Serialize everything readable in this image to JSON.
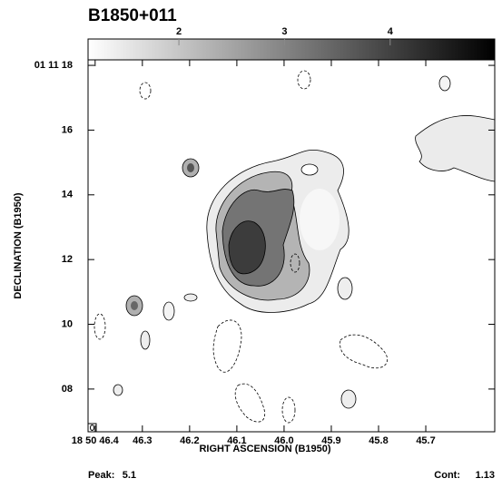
{
  "chart_data": {
    "type": "contour",
    "title": "B1850+011",
    "xlabel": "RIGHT ASCENSION (B1950)",
    "ylabel": "DECLINATION (B1950)",
    "xlim": [
      46.415,
      45.554
    ],
    "xticks": [
      {
        "value": 46.4,
        "label": "18 50 46.4"
      },
      46.3,
      46.2,
      46.1,
      {
        "value": 46.0,
        "label": "46.0"
      },
      45.9,
      45.8,
      45.7
    ],
    "ylim": [
      6.68,
      18.17
    ],
    "yticks": [
      {
        "value": 18,
        "label": "01 11 18"
      },
      16,
      14,
      12,
      10,
      {
        "value": 8,
        "label": "08"
      }
    ],
    "colorbar": {
      "lim": [
        1.14,
        4.99
      ],
      "ticks": [
        2,
        3,
        4
      ],
      "colors": [
        "#ffffff",
        "#000000"
      ]
    },
    "peak_label": "Peak:",
    "peak": 5.1,
    "cont_label": "Cont:",
    "cont": 1.13
  }
}
